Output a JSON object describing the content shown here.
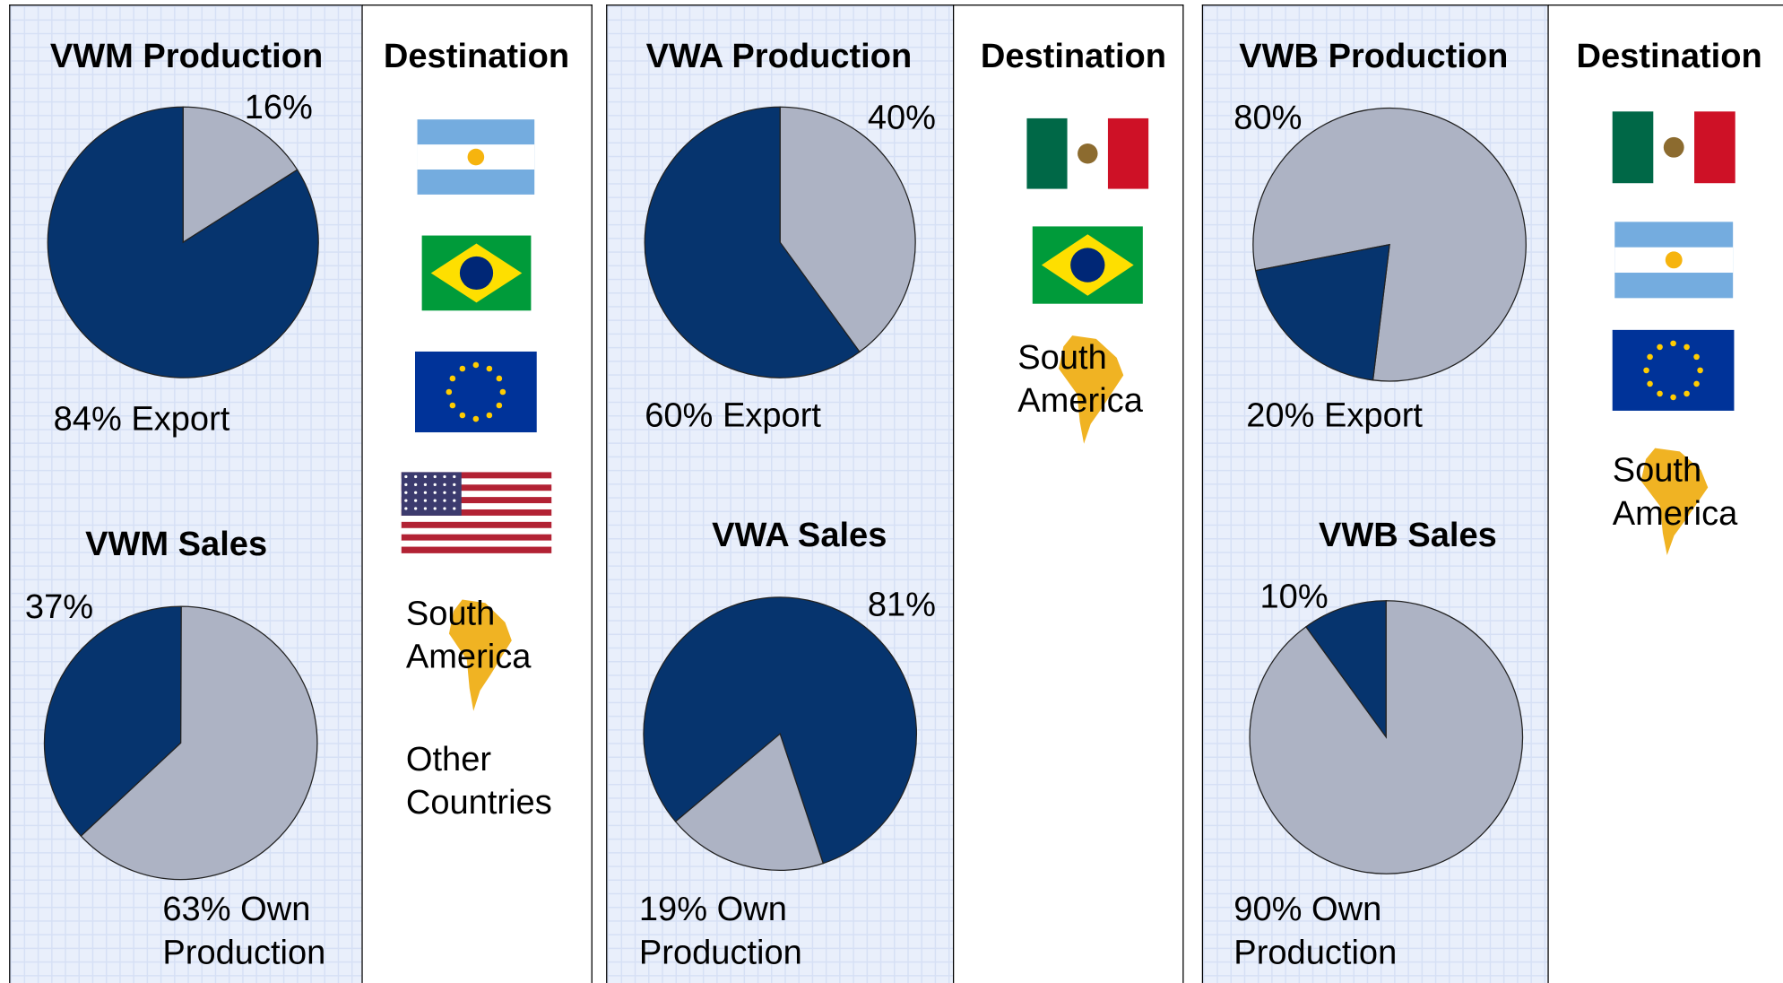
{
  "chart_data": [
    {
      "type": "pie",
      "title": "VWM Production",
      "values": [
        16,
        84
      ],
      "value_labels": [
        "16%",
        "84% Export"
      ],
      "colors": [
        "#adb3c4",
        "#06346e"
      ],
      "startangle": 0
    },
    {
      "type": "pie",
      "title": "VWM Sales",
      "values": [
        37,
        63
      ],
      "value_labels": [
        "37%",
        "63% Own Production"
      ],
      "colors": [
        "#06346e",
        "#adb3c4"
      ],
      "startangle": 227
    },
    {
      "type": "pie",
      "title": "VWA Production",
      "values": [
        40,
        60
      ],
      "value_labels": [
        "40%",
        "60% Export"
      ],
      "colors": [
        "#adb3c4",
        "#06346e"
      ],
      "startangle": 0
    },
    {
      "type": "pie",
      "title": "VWA Sales",
      "values": [
        81,
        19
      ],
      "value_labels": [
        "81%",
        "19% Own Production"
      ],
      "colors": [
        "#06346e",
        "#adb3c4"
      ],
      "startangle": 230
    },
    {
      "type": "pie",
      "title": "VWB Production",
      "values": [
        80,
        20
      ],
      "value_labels": [
        "80%",
        "20% Export"
      ],
      "colors": [
        "#adb3c4",
        "#06346e"
      ],
      "startangle": 259
    },
    {
      "type": "pie",
      "title": "VWB Sales",
      "values": [
        10,
        90
      ],
      "value_labels": [
        "10%",
        "90% Own Production"
      ],
      "colors": [
        "#06346e",
        "#adb3c4"
      ],
      "startangle": 324
    }
  ],
  "destinations": [
    {
      "title": "Destination",
      "labels": [
        "South America",
        "Other Countries"
      ]
    },
    {
      "title": "Destination",
      "labels": [
        "South America"
      ]
    },
    {
      "title": "Destination",
      "labels": [
        "South America"
      ]
    }
  ]
}
